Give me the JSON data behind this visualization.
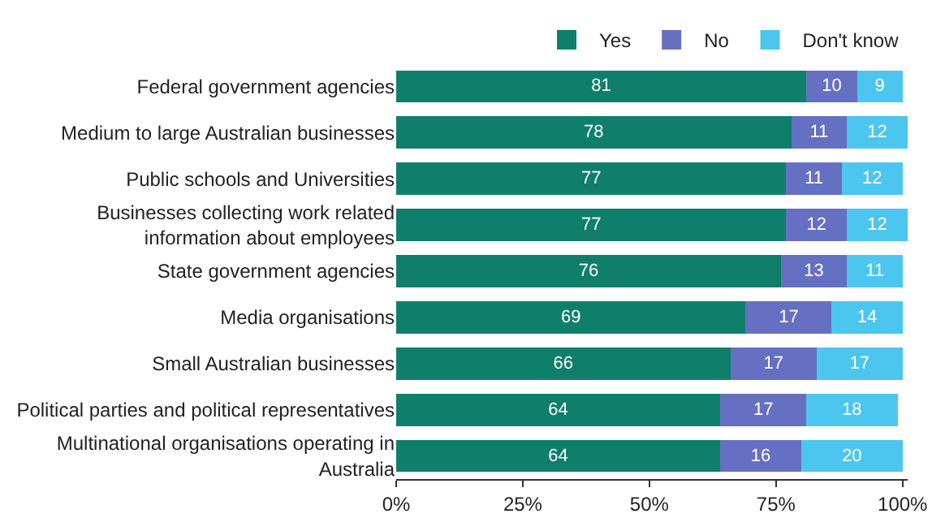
{
  "chart_data": {
    "type": "bar",
    "orientation": "horizontal",
    "stacked": true,
    "data_labels": true,
    "legend": "top right",
    "grid": false,
    "categories": [
      "Federal government agencies",
      "Medium to large Australian businesses",
      "Public schools and Universities",
      "Businesses collecting work related\ninformation about employees",
      "State government agencies",
      "Media organisations",
      "Small Australian businesses",
      "Political parties and political representatives",
      "Multinational organisations operating in\nAustralia"
    ],
    "series": [
      {
        "name": "Yes",
        "color": "#0f7f6b",
        "values": [
          81,
          78,
          77,
          77,
          76,
          69,
          66,
          64,
          64
        ]
      },
      {
        "name": "No",
        "color": "#6670c2",
        "values": [
          10,
          11,
          11,
          12,
          13,
          17,
          17,
          17,
          16
        ]
      },
      {
        "name": "Don't know",
        "color": "#4cc6ee",
        "values": [
          9,
          12,
          12,
          12,
          11,
          14,
          17,
          18,
          20
        ]
      }
    ],
    "xlim": [
      0,
      101
    ],
    "xticks": [
      {
        "value": 0,
        "label": "0%"
      },
      {
        "value": 25,
        "label": "25%"
      },
      {
        "value": 50,
        "label": "50%"
      },
      {
        "value": 75,
        "label": "75%"
      },
      {
        "value": 100,
        "label": "100%"
      }
    ]
  }
}
